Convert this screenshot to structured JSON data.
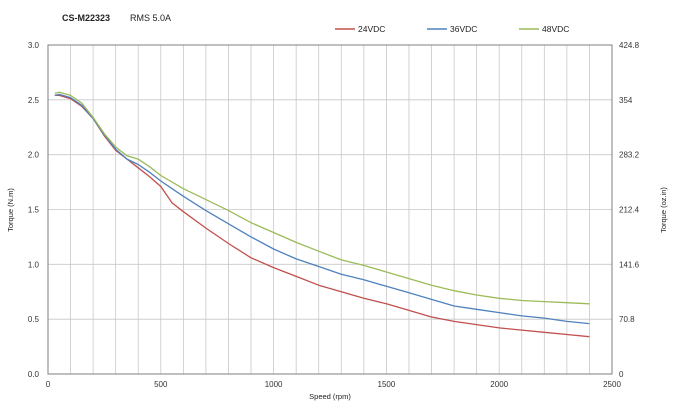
{
  "header": {
    "model": "CS-M22323",
    "rms": "RMS 5.0A"
  },
  "legend": [
    {
      "label": "24VDC",
      "color": "#c0504d"
    },
    {
      "label": "36VDC",
      "color": "#4f81bd"
    },
    {
      "label": "48VDC",
      "color": "#9bbb59"
    }
  ],
  "chart_data": {
    "type": "line",
    "title": "",
    "xlabel": "Speed (rpm)",
    "ylabel": "Torque (N.m)",
    "y2label": "Torque (oz.in)",
    "xlim": [
      0,
      2500
    ],
    "ylim": [
      0,
      3.0
    ],
    "y2lim": [
      0,
      424.8
    ],
    "x_ticks": [
      "0",
      "500",
      "1000",
      "1500",
      "2000",
      "2500"
    ],
    "y_ticks": [
      "0.0",
      "0.5",
      "1.0",
      "1.5",
      "2.0",
      "2.5",
      "3.0"
    ],
    "y2_ticks": [
      "0",
      "70.8",
      "141.6",
      "212.4",
      "283.2",
      "354",
      "424.8"
    ],
    "grid": true,
    "legend_position": "top-right",
    "series": [
      {
        "name": "24VDC",
        "color": "#c0504d",
        "x": [
          30,
          50,
          100,
          150,
          200,
          250,
          300,
          350,
          400,
          450,
          500,
          550,
          600,
          700,
          800,
          900,
          1000,
          1100,
          1200,
          1300,
          1400,
          1500,
          1600,
          1700,
          1800,
          1900,
          2000,
          2100,
          2200,
          2300,
          2400
        ],
        "values": [
          2.54,
          2.54,
          2.51,
          2.44,
          2.33,
          2.17,
          2.04,
          1.96,
          1.88,
          1.8,
          1.71,
          1.56,
          1.48,
          1.33,
          1.19,
          1.06,
          0.97,
          0.89,
          0.81,
          0.75,
          0.69,
          0.64,
          0.58,
          0.52,
          0.48,
          0.45,
          0.42,
          0.4,
          0.38,
          0.36,
          0.34
        ]
      },
      {
        "name": "36VDC",
        "color": "#4f81bd",
        "x": [
          30,
          50,
          100,
          150,
          200,
          250,
          300,
          350,
          400,
          450,
          500,
          550,
          600,
          700,
          800,
          900,
          1000,
          1100,
          1200,
          1300,
          1400,
          1500,
          1600,
          1700,
          1800,
          1900,
          2000,
          2100,
          2200,
          2300,
          2400
        ],
        "values": [
          2.54,
          2.55,
          2.52,
          2.45,
          2.33,
          2.18,
          2.05,
          1.96,
          1.91,
          1.84,
          1.76,
          1.69,
          1.62,
          1.49,
          1.37,
          1.25,
          1.14,
          1.05,
          0.98,
          0.91,
          0.86,
          0.8,
          0.74,
          0.68,
          0.62,
          0.59,
          0.56,
          0.53,
          0.51,
          0.48,
          0.46
        ]
      },
      {
        "name": "48VDC",
        "color": "#9bbb59",
        "x": [
          30,
          50,
          100,
          150,
          200,
          250,
          300,
          350,
          400,
          450,
          500,
          550,
          600,
          700,
          800,
          900,
          1000,
          1100,
          1200,
          1300,
          1400,
          1500,
          1600,
          1700,
          1800,
          1900,
          2000,
          2100,
          2200,
          2300,
          2400
        ],
        "values": [
          2.56,
          2.57,
          2.54,
          2.47,
          2.34,
          2.19,
          2.07,
          1.99,
          1.96,
          1.89,
          1.81,
          1.75,
          1.69,
          1.59,
          1.49,
          1.38,
          1.29,
          1.2,
          1.12,
          1.04,
          0.99,
          0.93,
          0.87,
          0.81,
          0.76,
          0.72,
          0.69,
          0.67,
          0.66,
          0.65,
          0.64
        ]
      }
    ]
  }
}
